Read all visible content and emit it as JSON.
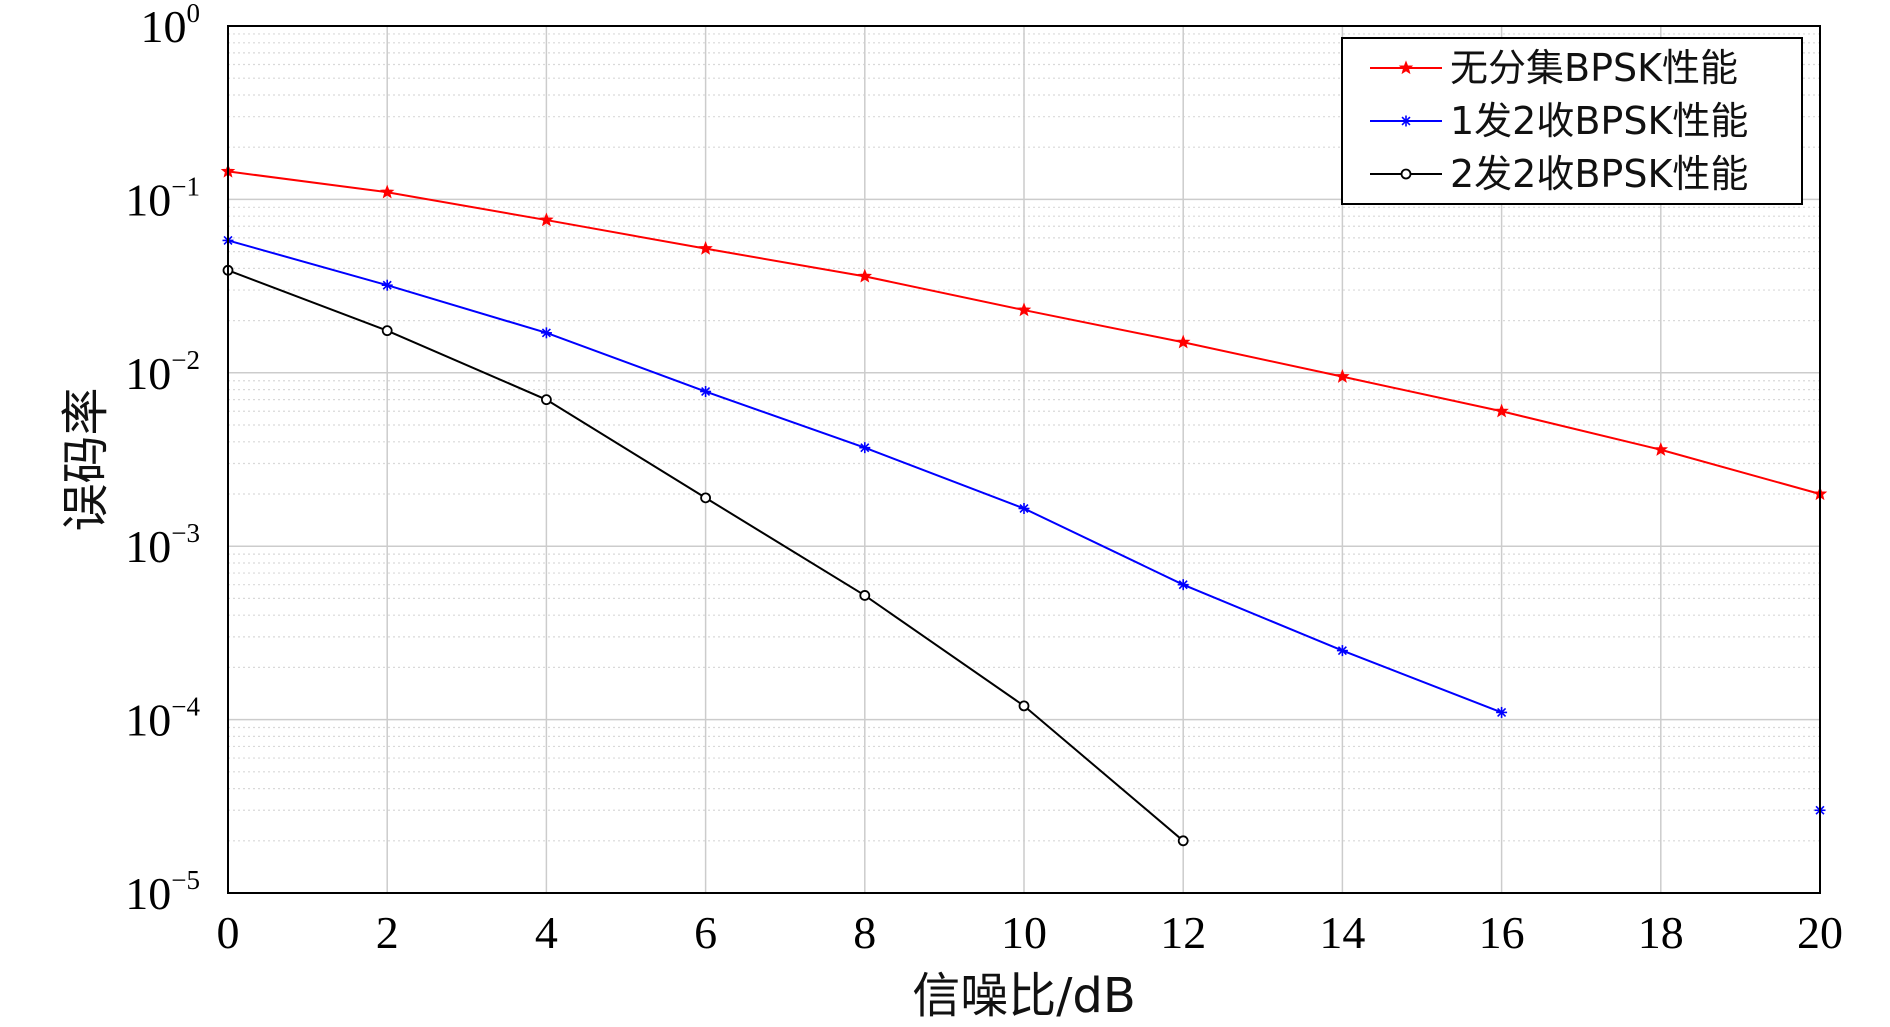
{
  "chart_data": {
    "type": "line",
    "title": "",
    "xlabel": "信噪比/dB",
    "ylabel": "误码率",
    "xlim": [
      0,
      20
    ],
    "ylim": [
      1e-05,
      1
    ],
    "yscale": "log",
    "x_ticks": [
      "0",
      "2",
      "4",
      "6",
      "8",
      "10",
      "12",
      "14",
      "16",
      "18",
      "20"
    ],
    "y_ticks": [
      {
        "base": "10",
        "exp": "−5",
        "value": 1e-05
      },
      {
        "base": "10",
        "exp": "−4",
        "value": 0.0001
      },
      {
        "base": "10",
        "exp": "−3",
        "value": 0.001
      },
      {
        "base": "10",
        "exp": "−2",
        "value": 0.01
      },
      {
        "base": "10",
        "exp": "−1",
        "value": 0.1
      },
      {
        "base": "10",
        "exp": "0",
        "value": 1
      }
    ],
    "grid": true,
    "minor_grid": true,
    "legend_position": "top-right",
    "series": [
      {
        "name": "无分集BPSK性能",
        "color": "#ff0000",
        "marker": "star",
        "x": [
          0,
          2,
          4,
          6,
          8,
          10,
          12,
          14,
          16,
          18,
          20
        ],
        "y": [
          0.145,
          0.11,
          0.076,
          0.052,
          0.036,
          0.023,
          0.015,
          0.0095,
          0.006,
          0.0036,
          0.002
        ]
      },
      {
        "name": "1发2收BPSK性能",
        "color": "#0000ff",
        "marker": "asterisk",
        "x": [
          0,
          2,
          4,
          6,
          8,
          10,
          12,
          14,
          16,
          20
        ],
        "y": [
          0.058,
          0.032,
          0.017,
          0.0078,
          0.0037,
          0.00165,
          0.0006,
          0.00025,
          0.00011,
          3e-05
        ],
        "connected_points": 9
      },
      {
        "name": "2发2收BPSK性能",
        "color": "#000000",
        "marker": "circle",
        "x": [
          0,
          2,
          4,
          6,
          8,
          10,
          12
        ],
        "y": [
          0.039,
          0.0175,
          0.007,
          0.0019,
          0.00052,
          0.00012,
          2e-05
        ]
      }
    ]
  }
}
